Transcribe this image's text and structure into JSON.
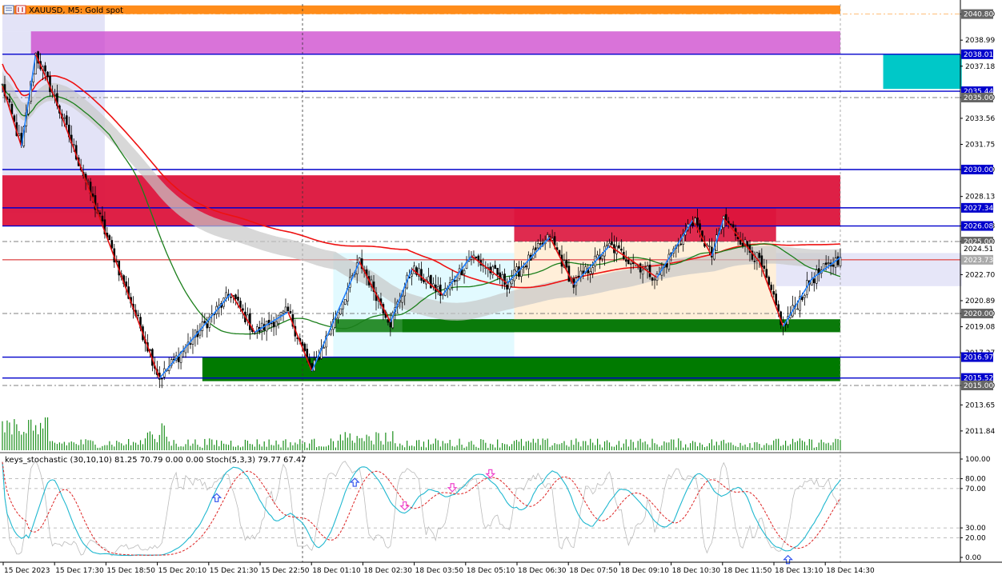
{
  "chart_data": {
    "type": "candlestick",
    "symbol_title": "XAUUSD, M5:  Gold spot",
    "indicator_title": "keys_stochastic (30,10,10) 81.25 70.79 0.00 0.00 Stoch(5,3,3) 79.77 67.47",
    "ylim": [
      2010.5,
      2041.5
    ],
    "price_ticks": [
      "2040.80",
      "2038.99",
      "2037.18",
      "2035.00",
      "2033.56",
      "2031.75",
      "2030.00",
      "2028.13",
      "2026.08",
      "2025.00",
      "2022.70",
      "2020.89",
      "2020.00",
      "2019.08",
      "2017.27",
      "2015.00",
      "2013.65",
      "2011.84"
    ],
    "hline_labels": [
      {
        "label": "2040.80",
        "value": 2040.8,
        "color": "#ffa94d",
        "dash": true
      },
      {
        "label": "2038.01",
        "value": 2038.01,
        "color": "#0000cc",
        "dash": false
      },
      {
        "label": "2035.44",
        "value": 2035.44,
        "color": "#0000cc",
        "dash": false
      },
      {
        "label": "2035.00",
        "value": 2035.0,
        "color": "#555555",
        "dash": true
      },
      {
        "label": "2030.00",
        "value": 2030.0,
        "color": "#0000cc",
        "dash": false
      },
      {
        "label": "2027.34",
        "value": 2027.34,
        "color": "#0000cc",
        "dash": false
      },
      {
        "label": "2026.08",
        "value": 2026.08,
        "color": "#0000cc",
        "dash": false
      },
      {
        "label": "2025.00",
        "value": 2025.0,
        "color": "#555555",
        "dash": true
      },
      {
        "label": "2024.51",
        "value": 2024.51,
        "color": "#ffffff",
        "dash": false
      },
      {
        "label": "2023.73",
        "value": 2023.73,
        "color": "#e05555",
        "dash": false
      },
      {
        "label": "2020.00",
        "value": 2020.0,
        "color": "#555555",
        "dash": true
      },
      {
        "label": "2016.97",
        "value": 2016.97,
        "color": "#0000cc",
        "dash": false
      },
      {
        "label": "2015.52",
        "value": 2015.52,
        "color": "#0000cc",
        "dash": false
      },
      {
        "label": "2015.00",
        "value": 2015.0,
        "color": "#555555",
        "dash": true
      }
    ],
    "time_labels": [
      "15 Dec 2023",
      "15 Dec 17:30",
      "15 Dec 18:50",
      "15 Dec 20:10",
      "15 Dec 21:30",
      "15 Dec 22:50",
      "18 Dec 01:10",
      "18 Dec 02:30",
      "18 Dec 03:50",
      "18 Dec 05:10",
      "18 Dec 06:30",
      "18 Dec 07:50",
      "18 Dec 09:10",
      "18 Dec 10:30",
      "18 Dec 11:50",
      "18 Dec 13:10",
      "18 Dec 14:30"
    ],
    "indicator_ticks": [
      "100.00",
      "80.00",
      "70.00",
      "30.00",
      "20.00",
      "0.00"
    ],
    "indicator_ylim": [
      0,
      100
    ],
    "zigzag_points": [
      {
        "i": 0,
        "p": 2035.8
      },
      {
        "i": 8,
        "p": 2031.6
      },
      {
        "i": 14,
        "p": 2038.0
      },
      {
        "i": 22,
        "p": 2035.0
      },
      {
        "i": 66,
        "p": 2015.5
      },
      {
        "i": 96,
        "p": 2021.4
      },
      {
        "i": 106,
        "p": 2018.7
      },
      {
        "i": 120,
        "p": 2020.1
      },
      {
        "i": 130,
        "p": 2016.0
      },
      {
        "i": 150,
        "p": 2023.6
      },
      {
        "i": 163,
        "p": 2019.4
      },
      {
        "i": 172,
        "p": 2023.1
      },
      {
        "i": 185,
        "p": 2021.3
      },
      {
        "i": 197,
        "p": 2024.0
      },
      {
        "i": 212,
        "p": 2022.1
      },
      {
        "i": 230,
        "p": 2025.3
      },
      {
        "i": 240,
        "p": 2022.0
      },
      {
        "i": 255,
        "p": 2024.7
      },
      {
        "i": 275,
        "p": 2022.5
      },
      {
        "i": 290,
        "p": 2026.5
      },
      {
        "i": 298,
        "p": 2024.0
      },
      {
        "i": 303,
        "p": 2026.6
      },
      {
        "i": 318,
        "p": 2023.6
      },
      {
        "i": 328,
        "p": 2019.1
      },
      {
        "i": 340,
        "p": 2022.4
      },
      {
        "i": 352,
        "p": 2023.9
      }
    ],
    "zones": [
      {
        "name": "orange-band",
        "from": 2040.8,
        "to": 2041.4,
        "i0": 0,
        "i1": 352,
        "color": "#ff8c1a"
      },
      {
        "name": "magenta-band",
        "from": 2038.0,
        "to": 2039.6,
        "i0": 12,
        "i1": 352,
        "color": "#cc44cc"
      },
      {
        "name": "crimson-band",
        "from": 2026.08,
        "to": 2029.6,
        "i0": 0,
        "i1": 352,
        "color": "#dc143c"
      },
      {
        "name": "green-band-upper",
        "from": 2018.7,
        "to": 2019.6,
        "i0": 168,
        "i1": 352,
        "color": "#0a7a0a"
      },
      {
        "name": "green-band-lower",
        "from": 2015.3,
        "to": 2016.97,
        "i0": 84,
        "i1": 352,
        "color": "#007a00"
      },
      {
        "name": "cyan-box",
        "from": 2035.6,
        "to": 2038.0,
        "i0": 370,
        "i1": 403,
        "color": "#00c8c8"
      }
    ]
  }
}
